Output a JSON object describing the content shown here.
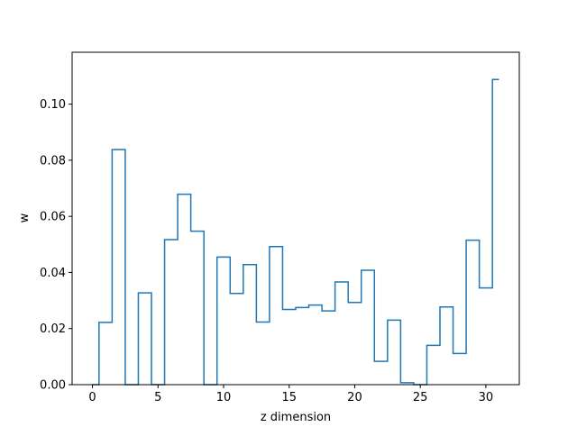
{
  "chart_data": {
    "type": "line",
    "drawstyle": "steps-mid",
    "title": "",
    "xlabel": "z dimension",
    "ylabel": "w",
    "xlim": [
      -1.55,
      32.55
    ],
    "ylim": [
      0.0,
      0.1185
    ],
    "xticks": [
      0,
      5,
      10,
      15,
      20,
      25,
      30
    ],
    "xtick_labels": [
      "0",
      "5",
      "10",
      "15",
      "20",
      "25",
      "30"
    ],
    "yticks": [
      0.0,
      0.02,
      0.04,
      0.06,
      0.08,
      0.1
    ],
    "ytick_labels": [
      "0.00",
      "0.02",
      "0.04",
      "0.06",
      "0.08",
      "0.10"
    ],
    "grid": false,
    "legend": "none",
    "line_color": "#1f77b4",
    "series": [
      {
        "x": [
          0,
          1,
          2,
          3,
          4,
          5,
          6,
          7,
          8,
          9,
          10,
          11,
          12,
          13,
          14,
          15,
          16,
          17,
          18,
          19,
          20,
          21,
          22,
          23,
          24,
          25,
          26,
          27,
          28,
          29,
          30,
          31
        ],
        "values": [
          0.0,
          0.0222,
          0.0838,
          0.0,
          0.0327,
          0.0,
          0.0517,
          0.0679,
          0.0547,
          0.0,
          0.0455,
          0.0325,
          0.0428,
          0.0223,
          0.0492,
          0.0268,
          0.0275,
          0.0284,
          0.0263,
          0.0366,
          0.0293,
          0.0408,
          0.0083,
          0.023,
          0.0007,
          0.0,
          0.014,
          0.0277,
          0.0111,
          0.0515,
          0.0345,
          0.1088
        ]
      }
    ]
  }
}
